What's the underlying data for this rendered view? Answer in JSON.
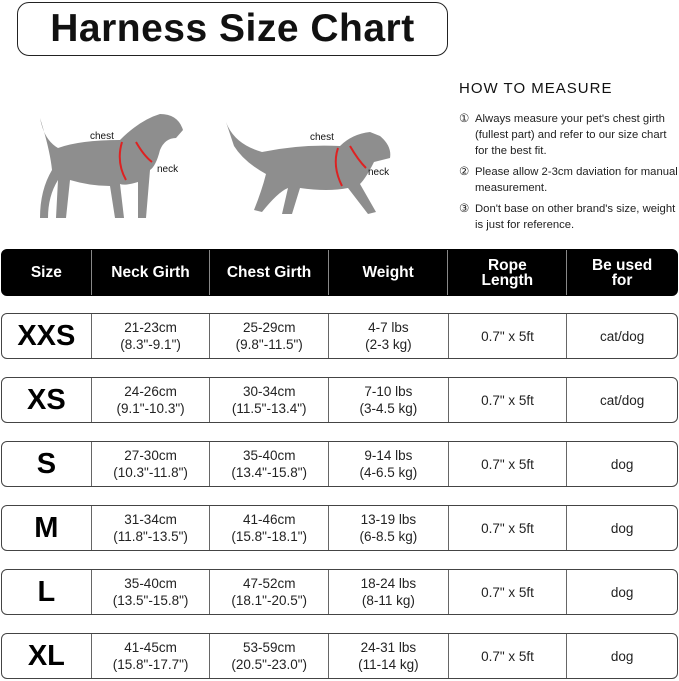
{
  "title": "Harness Size Chart",
  "diagram": {
    "chest_label": "chest",
    "neck_label": "neck"
  },
  "how_to": {
    "heading": "HOW TO MEASURE",
    "tips": [
      {
        "num": "①",
        "text": "Always measure your pet's chest girth (fullest part) and refer to our size chart for the best fit."
      },
      {
        "num": "②",
        "text": "Please allow 2-3cm daviation for manual measurement."
      },
      {
        "num": "③",
        "text": "Don't base on other brand's size, weight is just for reference."
      }
    ]
  },
  "table": {
    "headers": [
      "Size",
      "Neck Girth",
      "Chest Girth",
      "Weight",
      "Rope Length",
      "Be used for"
    ],
    "rows": [
      {
        "size": "XXS",
        "neck": [
          "21-23cm",
          "(8.3\"-9.1\")"
        ],
        "chest": [
          "25-29cm",
          "(9.8\"-11.5\")"
        ],
        "weight": [
          "4-7 lbs",
          "(2-3 kg)"
        ],
        "rope": "0.7\" x 5ft",
        "use": "cat/dog"
      },
      {
        "size": "XS",
        "neck": [
          "24-26cm",
          "(9.1\"-10.3\")"
        ],
        "chest": [
          "30-34cm",
          "(11.5\"-13.4\")"
        ],
        "weight": [
          "7-10 lbs",
          "(3-4.5 kg)"
        ],
        "rope": "0.7\" x 5ft",
        "use": "cat/dog"
      },
      {
        "size": "S",
        "neck": [
          "27-30cm",
          "(10.3\"-11.8\")"
        ],
        "chest": [
          "35-40cm",
          "(13.4\"-15.8\")"
        ],
        "weight": [
          "9-14 lbs",
          "(4-6.5 kg)"
        ],
        "rope": "0.7\" x 5ft",
        "use": "dog"
      },
      {
        "size": "M",
        "neck": [
          "31-34cm",
          "(11.8\"-13.5\")"
        ],
        "chest": [
          "41-46cm",
          "(15.8\"-18.1\")"
        ],
        "weight": [
          "13-19 lbs",
          "(6-8.5 kg)"
        ],
        "rope": "0.7\" x 5ft",
        "use": "dog"
      },
      {
        "size": "L",
        "neck": [
          "35-40cm",
          "(13.5\"-15.8\")"
        ],
        "chest": [
          "47-52cm",
          "(18.1\"-20.5\")"
        ],
        "weight": [
          "18-24 lbs",
          "(8-11 kg)"
        ],
        "rope": "0.7\" x 5ft",
        "use": "dog"
      },
      {
        "size": "XL",
        "neck": [
          "41-45cm",
          "(15.8\"-17.7\")"
        ],
        "chest": [
          "53-59cm",
          "(20.5\"-23.0\")"
        ],
        "weight": [
          "24-31 lbs",
          "(11-14 kg)"
        ],
        "rope": "0.7\" x 5ft",
        "use": "dog"
      }
    ]
  }
}
